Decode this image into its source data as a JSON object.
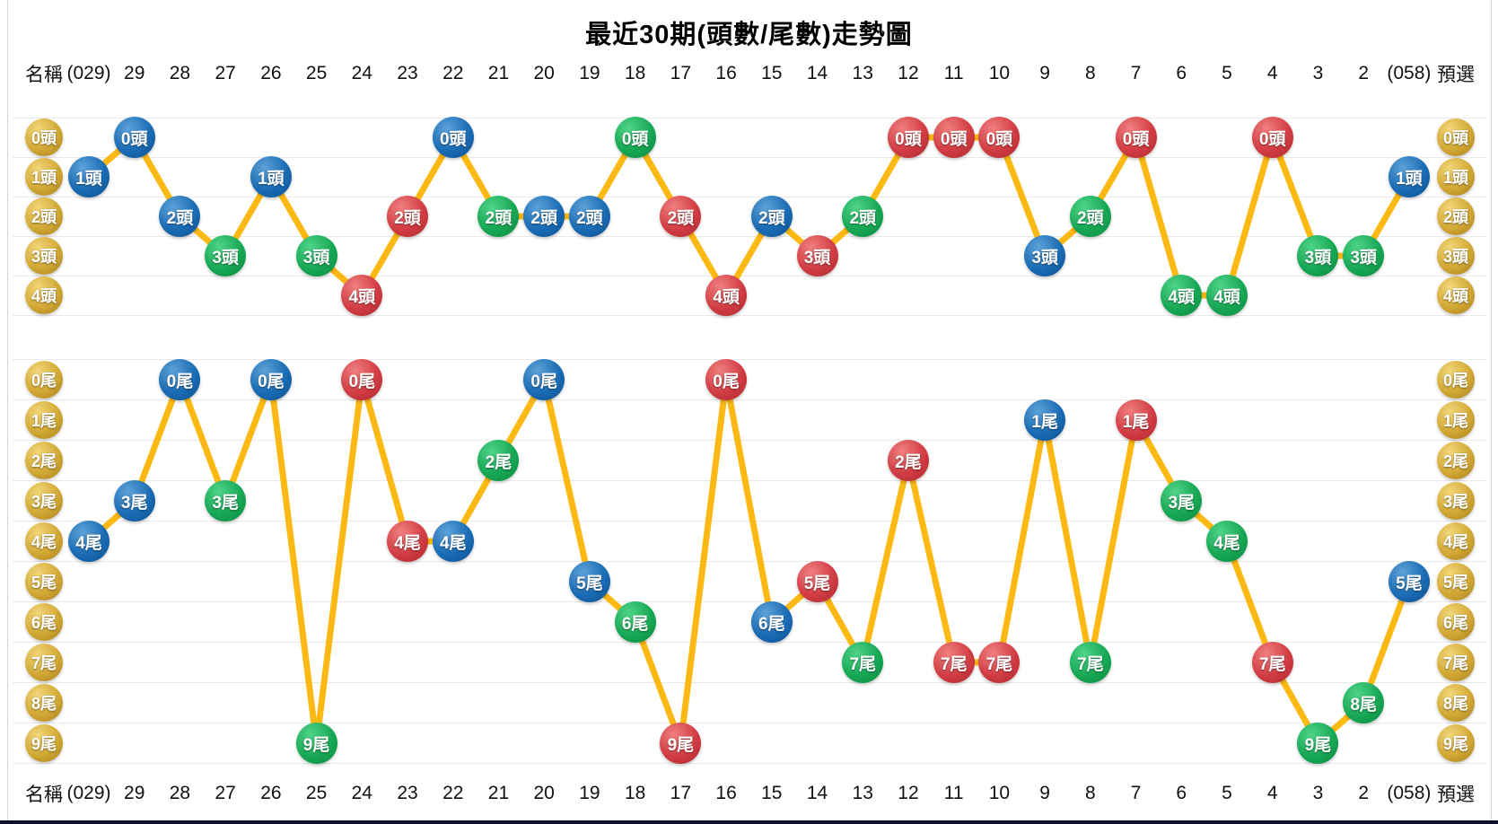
{
  "title": "最近30期(頭數/尾數)走勢圖",
  "header": {
    "name_label": "名稱",
    "preselect_label": "預選",
    "columns": [
      "(029)",
      "29",
      "28",
      "27",
      "26",
      "25",
      "24",
      "23",
      "22",
      "21",
      "20",
      "19",
      "18",
      "17",
      "16",
      "15",
      "14",
      "13",
      "12",
      "11",
      "10",
      "9",
      "8",
      "7",
      "6",
      "5",
      "4",
      "3",
      "2",
      "(058)"
    ]
  },
  "colors": {
    "line": "#fcb813",
    "blue": "#1a6cb5",
    "green": "#17a855",
    "red": "#d23d44",
    "gold": "#d3a935",
    "gridline": "#e9e9e9"
  },
  "chart_data": [
    {
      "type": "line",
      "name": "head-trend",
      "title": "頭數走勢 (0頭–4頭, 0 at top)",
      "unit_suffix": "頭",
      "row_labels": [
        "0頭",
        "1頭",
        "2頭",
        "3頭",
        "4頭"
      ],
      "categories": [
        "(029)",
        "29",
        "28",
        "27",
        "26",
        "25",
        "24",
        "23",
        "22",
        "21",
        "20",
        "19",
        "18",
        "17",
        "16",
        "15",
        "14",
        "13",
        "12",
        "11",
        "10",
        "9",
        "8",
        "7",
        "6",
        "5",
        "4",
        "3",
        "2",
        "(058)"
      ],
      "values": [
        1,
        0,
        2,
        3,
        1,
        3,
        4,
        2,
        0,
        2,
        2,
        2,
        0,
        2,
        4,
        2,
        3,
        2,
        0,
        0,
        0,
        3,
        2,
        0,
        4,
        4,
        0,
        3,
        3,
        1
      ],
      "point_colors": [
        "blue",
        "blue",
        "blue",
        "green",
        "blue",
        "green",
        "red",
        "red",
        "blue",
        "green",
        "blue",
        "blue",
        "green",
        "red",
        "red",
        "blue",
        "red",
        "green",
        "red",
        "red",
        "red",
        "blue",
        "green",
        "red",
        "green",
        "green",
        "red",
        "green",
        "green",
        "blue"
      ],
      "legend_position": "none",
      "grid": true
    },
    {
      "type": "line",
      "name": "tail-trend",
      "title": "尾數走勢 (0尾–9尾, 0 at top)",
      "unit_suffix": "尾",
      "row_labels": [
        "0尾",
        "1尾",
        "2尾",
        "3尾",
        "4尾",
        "5尾",
        "6尾",
        "7尾",
        "8尾",
        "9尾"
      ],
      "categories": [
        "(029)",
        "29",
        "28",
        "27",
        "26",
        "25",
        "24",
        "23",
        "22",
        "21",
        "20",
        "19",
        "18",
        "17",
        "16",
        "15",
        "14",
        "13",
        "12",
        "11",
        "10",
        "9",
        "8",
        "7",
        "6",
        "5",
        "4",
        "3",
        "2",
        "(058)"
      ],
      "values": [
        4,
        3,
        0,
        3,
        0,
        9,
        0,
        4,
        4,
        2,
        0,
        5,
        6,
        9,
        0,
        6,
        5,
        7,
        2,
        7,
        7,
        1,
        7,
        1,
        3,
        4,
        7,
        9,
        8,
        5
      ],
      "point_colors": [
        "blue",
        "blue",
        "blue",
        "green",
        "blue",
        "green",
        "red",
        "red",
        "blue",
        "green",
        "blue",
        "blue",
        "green",
        "red",
        "red",
        "blue",
        "red",
        "green",
        "red",
        "red",
        "red",
        "blue",
        "green",
        "red",
        "green",
        "green",
        "red",
        "green",
        "green",
        "blue"
      ],
      "legend_position": "none",
      "grid": true
    }
  ]
}
